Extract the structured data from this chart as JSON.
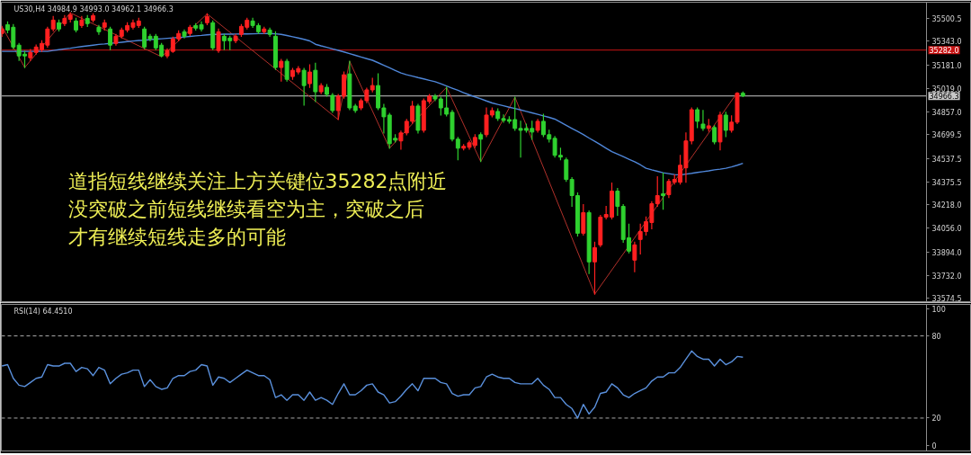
{
  "chart_data": [
    {
      "type": "candlestick",
      "title": "US30,H4 34984.9 34993.0 34962.1 34966.3",
      "categories": [
        null,
        null,
        null,
        null,
        null,
        null,
        null,
        null,
        null,
        null,
        null,
        null,
        null,
        null,
        null,
        null,
        null,
        null,
        null,
        null,
        null,
        null,
        null,
        null,
        null,
        null,
        null,
        null,
        null,
        null,
        null,
        null,
        null,
        null,
        null,
        null,
        null,
        null,
        null,
        null,
        null,
        null,
        null,
        null,
        null,
        null,
        null,
        null,
        null,
        null,
        null,
        null,
        null,
        null,
        null,
        null,
        null,
        null,
        null,
        null,
        null,
        null,
        null,
        null,
        null,
        null,
        null,
        null,
        null,
        null,
        null,
        null,
        null,
        null,
        null,
        null,
        null,
        null,
        null,
        null,
        null,
        null,
        null,
        null,
        null,
        null,
        null,
        null,
        null,
        null,
        null,
        null,
        null,
        null,
        null,
        null,
        null,
        null,
        null,
        null,
        null,
        null,
        null,
        null,
        null,
        null,
        null,
        null,
        null,
        null,
        null,
        null,
        null,
        null,
        null,
        null,
        null,
        null,
        null,
        null,
        null,
        null,
        null,
        null,
        null,
        null,
        null,
        null,
        null,
        null,
        null
      ],
      "ohlc": [
        [
          35396,
          35445,
          35377,
          35427
        ],
        [
          35457,
          35476,
          35402,
          35420
        ],
        [
          35439,
          35457,
          35291,
          35303
        ],
        [
          35316,
          35328,
          35211,
          35242
        ],
        [
          35254,
          35273,
          35162,
          35242
        ],
        [
          35229,
          35285,
          35211,
          35266
        ],
        [
          35266,
          35316,
          35254,
          35303
        ],
        [
          35285,
          35346,
          35273,
          35328
        ],
        [
          35316,
          35439,
          35303,
          35427
        ],
        [
          35427,
          35513,
          35414,
          35488
        ],
        [
          35470,
          35488,
          35414,
          35427
        ],
        [
          35464,
          35519,
          35451,
          35500
        ],
        [
          35494,
          35538,
          35476,
          35525
        ],
        [
          35482,
          35500,
          35408,
          35420
        ],
        [
          35451,
          35513,
          35439,
          35488
        ],
        [
          35500,
          35519,
          35445,
          35464
        ],
        [
          35488,
          35531,
          35476,
          35519
        ],
        [
          35439,
          35451,
          35390,
          35408
        ],
        [
          35439,
          35488,
          35420,
          35470
        ],
        [
          35427,
          35439,
          35285,
          35316
        ],
        [
          35328,
          35390,
          35316,
          35377
        ],
        [
          35377,
          35433,
          35365,
          35420
        ],
        [
          35420,
          35470,
          35408,
          35451
        ],
        [
          35439,
          35488,
          35427,
          35470
        ],
        [
          35451,
          35500,
          35439,
          35482
        ],
        [
          35427,
          35439,
          35291,
          35303
        ],
        [
          35377,
          35390,
          35346,
          35359
        ],
        [
          35377,
          35390,
          35285,
          35297
        ],
        [
          35316,
          35328,
          35236,
          35242
        ],
        [
          35242,
          35291,
          35229,
          35279
        ],
        [
          35273,
          35371,
          35266,
          35359
        ],
        [
          35359,
          35414,
          35346,
          35396
        ],
        [
          35408,
          35420,
          35365,
          35377
        ],
        [
          35396,
          35451,
          35383,
          35439
        ],
        [
          35451,
          35464,
          35420,
          35433
        ],
        [
          35457,
          35476,
          35414,
          35427
        ],
        [
          35470,
          35531,
          35457,
          35513
        ],
        [
          35470,
          35482,
          35285,
          35297
        ],
        [
          35279,
          35427,
          35266,
          35408
        ],
        [
          35377,
          35390,
          35285,
          35346
        ],
        [
          35365,
          35377,
          35285,
          35346
        ],
        [
          35346,
          35390,
          35334,
          35377
        ],
        [
          35390,
          35457,
          35377,
          35445
        ],
        [
          35439,
          35500,
          35427,
          35488
        ],
        [
          35482,
          35500,
          35439,
          35451
        ],
        [
          35451,
          35464,
          35396,
          35408
        ],
        [
          35408,
          35439,
          35396,
          35427
        ],
        [
          35420,
          35433,
          35377,
          35390
        ],
        [
          35377,
          35408,
          35149,
          35162
        ],
        [
          35162,
          35217,
          35069,
          35205
        ],
        [
          35205,
          35217,
          35069,
          35081
        ],
        [
          35100,
          35155,
          35081,
          35143
        ],
        [
          35131,
          35168,
          35118,
          35155
        ],
        [
          35143,
          35155,
          34903,
          35038
        ],
        [
          35051,
          35180,
          35026,
          35131
        ],
        [
          35143,
          35192,
          34928,
          34995
        ],
        [
          34995,
          35051,
          34983,
          35038
        ],
        [
          35026,
          35044,
          34965,
          34977
        ],
        [
          34971,
          34983,
          34854,
          34866
        ],
        [
          34866,
          34977,
          34804,
          34965
        ],
        [
          34965,
          35131,
          34952,
          35112
        ],
        [
          35118,
          35205,
          34872,
          34884
        ],
        [
          34897,
          34909,
          34854,
          34866
        ],
        [
          34884,
          34946,
          34872,
          34934
        ],
        [
          34934,
          35020,
          34921,
          35008
        ],
        [
          35008,
          35088,
          34995,
          35038
        ],
        [
          35038,
          35118,
          34872,
          34884
        ],
        [
          34884,
          34909,
          34712,
          34823
        ],
        [
          34835,
          34847,
          34607,
          34638
        ],
        [
          34675,
          34700,
          34650,
          34663
        ],
        [
          34657,
          34724,
          34601,
          34712
        ],
        [
          34712,
          34804,
          34700,
          34792
        ],
        [
          34792,
          34928,
          34780,
          34897
        ],
        [
          34897,
          34909,
          34712,
          34730
        ],
        [
          34730,
          34946,
          34718,
          34934
        ],
        [
          34928,
          34977,
          34915,
          34965
        ],
        [
          34965,
          34977,
          34934,
          34946
        ],
        [
          34946,
          34958,
          34835,
          34884
        ],
        [
          34884,
          35026,
          34829,
          34841
        ],
        [
          34854,
          34866,
          34657,
          34669
        ],
        [
          34669,
          34681,
          34527,
          34607
        ],
        [
          34607,
          34632,
          34595,
          34620
        ],
        [
          34613,
          34657,
          34601,
          34644
        ],
        [
          34626,
          34700,
          34613,
          34681
        ],
        [
          34700,
          34712,
          34515,
          34669
        ],
        [
          34700,
          34884,
          34687,
          34835
        ],
        [
          34835,
          34884,
          34823,
          34866
        ],
        [
          34860,
          34878,
          34798,
          34811
        ],
        [
          34811,
          34835,
          34786,
          34798
        ],
        [
          34804,
          34823,
          34780,
          34792
        ],
        [
          34804,
          34958,
          34730,
          34743
        ],
        [
          34743,
          34792,
          34546,
          34730
        ],
        [
          34743,
          34773,
          34718,
          34730
        ],
        [
          34743,
          34792,
          34669,
          34718
        ],
        [
          34730,
          34804,
          34718,
          34792
        ],
        [
          34792,
          34841,
          34687,
          34700
        ],
        [
          34700,
          34730,
          34650,
          34669
        ],
        [
          34675,
          34687,
          34546,
          34558
        ],
        [
          34558,
          34607,
          34527,
          34546
        ],
        [
          34527,
          34539,
          34379,
          34392
        ],
        [
          34392,
          34404,
          34207,
          34281
        ],
        [
          34281,
          34299,
          34003,
          34022
        ],
        [
          34022,
          34219,
          34010,
          34164
        ],
        [
          34164,
          34176,
          33745,
          33825
        ],
        [
          33825,
          33960,
          33603,
          33923
        ],
        [
          33942,
          34145,
          33930,
          34133
        ],
        [
          34133,
          34207,
          34121,
          34151
        ],
        [
          34133,
          34367,
          34121,
          34312
        ],
        [
          34312,
          34330,
          34145,
          34207
        ],
        [
          34207,
          34219,
          33960,
          33979
        ],
        [
          33991,
          34084,
          33887,
          33899
        ],
        [
          33837,
          33960,
          33757,
          33942
        ],
        [
          33979,
          34084,
          33880,
          34034
        ],
        [
          34034,
          34133,
          34010,
          34102
        ],
        [
          34096,
          34238,
          34053,
          34225
        ],
        [
          34225,
          34410,
          34207,
          34281
        ],
        [
          34293,
          34435,
          34188,
          34281
        ],
        [
          34287,
          34392,
          34268,
          34379
        ],
        [
          34373,
          34422,
          34361,
          34392
        ],
        [
          34373,
          34558,
          34361,
          34490
        ],
        [
          34472,
          34712,
          34373,
          34657
        ],
        [
          34657,
          34884,
          34638,
          34872
        ],
        [
          34872,
          34884,
          34749,
          34792
        ],
        [
          34773,
          34866,
          34730,
          34743
        ],
        [
          34743,
          34804,
          34724,
          34761
        ],
        [
          34749,
          34761,
          34638,
          34650
        ],
        [
          34650,
          34854,
          34595,
          34835
        ],
        [
          34835,
          34854,
          34687,
          34730
        ],
        [
          34730,
          34829,
          34718,
          34786
        ],
        [
          34786,
          34989,
          34776,
          34985
        ],
        [
          34984.9,
          34993.0,
          34962.1,
          34966.3
        ]
      ],
      "colors": [
        "#ff2020",
        "#2fd12f",
        "#2fd12f",
        "#2fd12f",
        "#2fd12f",
        "#ff2020",
        "#ff2020",
        "#ff2020",
        "#ff2020",
        "#ff2020",
        "#2fd12f",
        "#ff2020",
        "#ff2020",
        "#2fd12f",
        "#ff2020",
        "#2fd12f",
        "#ff2020",
        "#2fd12f",
        "#ff2020",
        "#2fd12f",
        "#ff2020",
        "#ff2020",
        "#ff2020",
        "#ff2020",
        "#ff2020",
        "#2fd12f",
        "#2fd12f",
        "#2fd12f",
        "#2fd12f",
        "#ff2020",
        "#ff2020",
        "#ff2020",
        "#2fd12f",
        "#ff2020",
        "#2fd12f",
        "#2fd12f",
        "#ff2020",
        "#2fd12f",
        "#ff2020",
        "#2fd12f",
        "#2fd12f",
        "#ff2020",
        "#ff2020",
        "#ff2020",
        "#2fd12f",
        "#2fd12f",
        "#ff2020",
        "#2fd12f",
        "#2fd12f",
        "#ff2020",
        "#2fd12f",
        "#ff2020",
        "#ff2020",
        "#2fd12f",
        "#ff2020",
        "#2fd12f",
        "#ff2020",
        "#2fd12f",
        "#2fd12f",
        "#ff2020",
        "#ff2020",
        "#2fd12f",
        "#2fd12f",
        "#ff2020",
        "#ff2020",
        "#ff2020",
        "#2fd12f",
        "#2fd12f",
        "#2fd12f",
        "#2fd12f",
        "#ff2020",
        "#ff2020",
        "#ff2020",
        "#2fd12f",
        "#ff2020",
        "#ff2020",
        "#2fd12f",
        "#2fd12f",
        "#2fd12f",
        "#2fd12f",
        "#2fd12f",
        "#ff2020",
        "#ff2020",
        "#ff2020",
        "#2fd12f",
        "#ff2020",
        "#ff2020",
        "#2fd12f",
        "#2fd12f",
        "#2fd12f",
        "#2fd12f",
        "#2fd12f",
        "#2fd12f",
        "#2fd12f",
        "#ff2020",
        "#2fd12f",
        "#2fd12f",
        "#2fd12f",
        "#2fd12f",
        "#2fd12f",
        "#2fd12f",
        "#2fd12f",
        "#ff2020",
        "#2fd12f",
        "#ff2020",
        "#ff2020",
        "#ff2020",
        "#ff2020",
        "#2fd12f",
        "#2fd12f",
        "#2fd12f",
        "#ff2020",
        "#ff2020",
        "#ff2020",
        "#ff2020",
        "#ff2020",
        "#2fd12f",
        "#ff2020",
        "#ff2020",
        "#ff2020",
        "#ff2020",
        "#ff2020",
        "#2fd12f",
        "#2fd12f",
        "#ff2020",
        "#2fd12f",
        "#ff2020",
        "#2fd12f",
        "#ff2020",
        "#ff2020",
        "#2fd12f"
      ],
      "series": [
        {
          "type": "line",
          "color": "#b0302a",
          "values": [
            35445,
            null,
            null,
            null,
            35162,
            null,
            null,
            null,
            null,
            null,
            null,
            null,
            35538,
            null,
            null,
            null,
            null,
            null,
            null,
            null,
            null,
            null,
            null,
            null,
            null,
            null,
            null,
            null,
            35236,
            null,
            null,
            null,
            null,
            null,
            null,
            null,
            35531,
            null,
            null,
            null,
            null,
            null,
            null,
            null,
            null,
            null,
            null,
            null,
            null,
            null,
            null,
            null,
            null,
            null,
            null,
            null,
            null,
            null,
            null,
            34804,
            null,
            35205,
            null,
            null,
            null,
            null,
            null,
            null,
            34607,
            null,
            null,
            null,
            null,
            null,
            null,
            null,
            null,
            null,
            35026,
            null,
            null,
            null,
            null,
            null,
            34515,
            null,
            null,
            null,
            null,
            null,
            34958,
            null,
            null,
            null,
            null,
            null,
            null,
            null,
            null,
            null,
            null,
            null,
            null,
            null,
            33603,
            null,
            null,
            null,
            null,
            null,
            null,
            null,
            null,
            null,
            null,
            null,
            null,
            null,
            null,
            null,
            null,
            null,
            null,
            null,
            null,
            null,
            null,
            null,
            null,
            34989,
            null
          ]
        },
        {
          "type": "line",
          "color": "#4f86d8",
          "values": [
            35273,
            35273,
            35273,
            35273,
            35273,
            35273,
            35273,
            35273,
            35273,
            35279,
            35285,
            35290,
            35295,
            35301,
            35306,
            35311,
            35316,
            35321,
            35324,
            35328,
            35332,
            35336,
            35340,
            35344,
            35348,
            35350,
            35354,
            35357,
            35360,
            35363,
            35366,
            35369,
            35372,
            35376,
            35380,
            35383,
            35387,
            35390,
            35390,
            35391,
            35391,
            35392,
            35393,
            35393,
            35394,
            35395,
            35395,
            35396,
            35394,
            35390,
            35382,
            35374,
            35365,
            35356,
            35345,
            35322,
            35311,
            35301,
            35290,
            35280,
            35269,
            35258,
            35246,
            35234,
            35223,
            35212,
            35195,
            35177,
            35160,
            35142,
            35125,
            35112,
            35103,
            35093,
            35084,
            35074,
            35064,
            35050,
            35035,
            35020,
            35005,
            34989,
            34974,
            34960,
            34947,
            34932,
            34918,
            34908,
            34899,
            34889,
            34880,
            34870,
            34860,
            34850,
            34840,
            34829,
            34819,
            34807,
            34786,
            34765,
            34743,
            34722,
            34701,
            34677,
            34655,
            34631,
            34607,
            34584,
            34566,
            34549,
            34531,
            34514,
            34493,
            34469,
            34458,
            34448,
            34438,
            34432,
            34426,
            34423,
            34429,
            34434,
            34440,
            34446,
            34451,
            34458,
            34463,
            34469,
            34478,
            34490,
            34503
          ]
        }
      ],
      "ylim": [
        33545,
        35611
      ],
      "yticks": [
        35500.5,
        {
          "value": 35343,
          "label": "35343.0"
        },
        {
          "value": 35181,
          "label": "35181.0"
        },
        {
          "value": 35019,
          "label": "35019.0"
        },
        {
          "value": 34857,
          "label": "34857.0"
        },
        34699.5,
        34537.5,
        34375.5,
        {
          "value": 34218,
          "label": "34218.0"
        },
        {
          "value": 34056,
          "label": "34056.0"
        },
        {
          "value": 33894,
          "label": "33894.0"
        },
        {
          "value": 33732,
          "label": "33732.0"
        },
        33574.5
      ],
      "ref_lines": [
        {
          "axis": "y",
          "value": 35282,
          "label": "35282.0",
          "color": "#c81414"
        },
        {
          "axis": "y",
          "value": 34966.3,
          "label": "34966.3",
          "color": "#c8c8c8"
        }
      ],
      "annotations": [
        "道指短线继续关注上方关键位35282点附近",
        "没突破之前短线继续看空为主，突破之后",
        "才有继续短线走多的可能"
      ],
      "tick_labels": "y"
    },
    {
      "type": "line",
      "title": "RSI(14) 64.4510",
      "categories": [
        null,
        null,
        null,
        null,
        null,
        null,
        null,
        null,
        null,
        null,
        null,
        null,
        null,
        null,
        null,
        null,
        null,
        null,
        null,
        null,
        null,
        null,
        null,
        null,
        null,
        null,
        null,
        null,
        null,
        null,
        null,
        null,
        null,
        null,
        null,
        null,
        null,
        null,
        null,
        null,
        null,
        null,
        null,
        null,
        null,
        null,
        null,
        null,
        null,
        null,
        null,
        null,
        null,
        null,
        null,
        null,
        null,
        null,
        null,
        null,
        null,
        null,
        null,
        null,
        null,
        null,
        null,
        null,
        null,
        null,
        null,
        null,
        null,
        null,
        null,
        null,
        null,
        null,
        null,
        null,
        null,
        null,
        null,
        null,
        null,
        null,
        null,
        null,
        null,
        null,
        null,
        null,
        null,
        null,
        null,
        null,
        null,
        null,
        null,
        null,
        null,
        null,
        null,
        null,
        null,
        null,
        null,
        null,
        null,
        null,
        null,
        null,
        null,
        null,
        null,
        null,
        null,
        null,
        null,
        null,
        null,
        null,
        null,
        null,
        null,
        null,
        null,
        null,
        null,
        null,
        null
      ],
      "color": "#5a90dc",
      "values": [
        58,
        59,
        49,
        44,
        43,
        46,
        49,
        50,
        59,
        58,
        58,
        60,
        60,
        54,
        57,
        56,
        51,
        57,
        55,
        45,
        49,
        52,
        53,
        55,
        55,
        43,
        48,
        43,
        41,
        42,
        49,
        51,
        51,
        54,
        55,
        59,
        58,
        44,
        50,
        49,
        46,
        49,
        52,
        55,
        53,
        51,
        51,
        48,
        35,
        37,
        33,
        37,
        37,
        33,
        39,
        33,
        35,
        33,
        30,
        38,
        45,
        37,
        37,
        40,
        44,
        45,
        39,
        37,
        31,
        32,
        36,
        41,
        45,
        40,
        49,
        49,
        49,
        46,
        45,
        38,
        36,
        37,
        37,
        42,
        43,
        50,
        52,
        50,
        49,
        49,
        46,
        45,
        45,
        45,
        49,
        44,
        41,
        35,
        35,
        30,
        27,
        20,
        30,
        23,
        28,
        38,
        39,
        45,
        42,
        37,
        35,
        38,
        40,
        42,
        47,
        50,
        50,
        53,
        53,
        57,
        63,
        69,
        65,
        63,
        63,
        58,
        63,
        59,
        61,
        65,
        64.451
      ],
      "ylim": [
        -4,
        103
      ],
      "yticks": [
        0,
        20,
        80,
        100
      ],
      "ref_lines": [
        {
          "axis": "y",
          "value": 80,
          "color": "#a8a8a8",
          "line_style": "dashed"
        },
        {
          "axis": "y",
          "value": 20,
          "color": "#a8a8a8",
          "line_style": "dashed"
        }
      ],
      "tick_labels": "y"
    }
  ]
}
